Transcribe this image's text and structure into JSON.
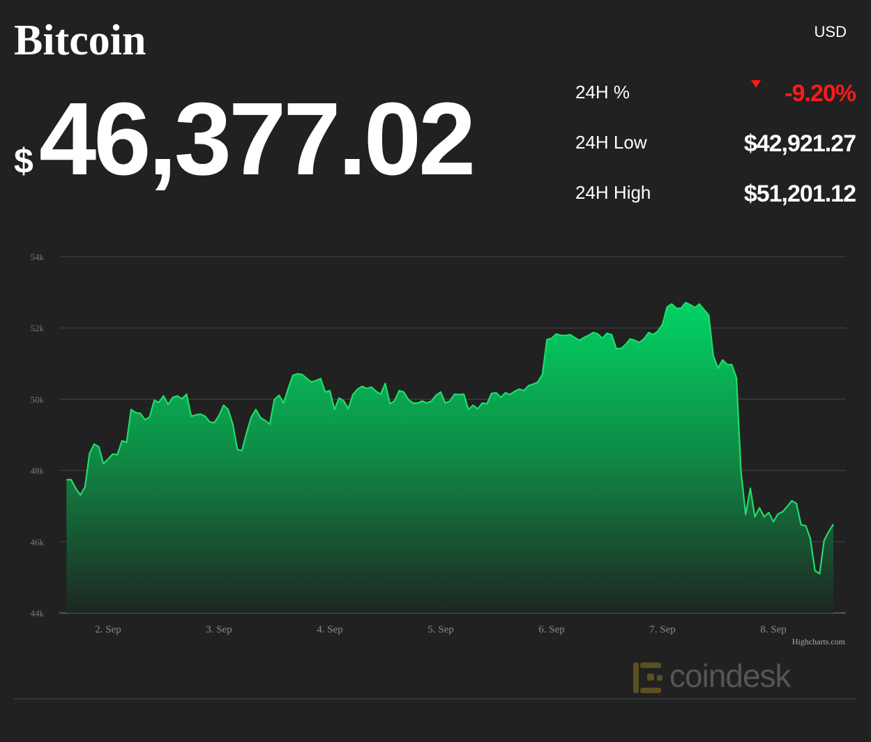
{
  "header": {
    "title": "Bitcoin",
    "currency": "USD",
    "price_symbol": "$",
    "price": "46,377.02"
  },
  "stats": [
    {
      "label": "24H %",
      "value": "-9.20%"
    },
    {
      "label": "24H Low",
      "value": "$42,921.27"
    },
    {
      "label": "24H High",
      "value": "$51,201.12"
    }
  ],
  "chart_data": {
    "type": "area",
    "x": [
      1.625,
      1.667,
      1.708,
      1.75,
      1.792,
      1.833,
      1.875,
      1.917,
      1.958,
      2,
      2.042,
      2.083,
      2.125,
      2.167,
      2.208,
      2.25,
      2.292,
      2.333,
      2.375,
      2.417,
      2.458,
      2.5,
      2.542,
      2.583,
      2.625,
      2.667,
      2.708,
      2.75,
      2.792,
      2.833,
      2.875,
      2.917,
      2.958,
      3,
      3.042,
      3.083,
      3.125,
      3.167,
      3.208,
      3.25,
      3.292,
      3.333,
      3.375,
      3.417,
      3.458,
      3.5,
      3.542,
      3.583,
      3.625,
      3.667,
      3.708,
      3.75,
      3.792,
      3.833,
      3.875,
      3.917,
      3.958,
      4,
      4.042,
      4.083,
      4.125,
      4.167,
      4.208,
      4.25,
      4.292,
      4.333,
      4.375,
      4.417,
      4.458,
      4.5,
      4.542,
      4.583,
      4.625,
      4.667,
      4.708,
      4.75,
      4.792,
      4.833,
      4.875,
      4.917,
      4.958,
      5,
      5.042,
      5.083,
      5.125,
      5.167,
      5.208,
      5.25,
      5.292,
      5.333,
      5.375,
      5.417,
      5.458,
      5.5,
      5.542,
      5.583,
      5.625,
      5.667,
      5.708,
      5.75,
      5.792,
      5.833,
      5.875,
      5.917,
      5.958,
      6,
      6.042,
      6.083,
      6.125,
      6.167,
      6.208,
      6.25,
      6.292,
      6.333,
      6.375,
      6.417,
      6.458,
      6.5,
      6.542,
      6.583,
      6.625,
      6.667,
      6.708,
      6.75,
      6.792,
      6.833,
      6.875,
      6.917,
      6.958,
      7,
      7.042,
      7.083,
      7.125,
      7.167,
      7.208,
      7.25,
      7.292,
      7.333,
      7.375,
      7.417,
      7.458,
      7.5,
      7.542,
      7.583,
      7.625,
      7.667,
      7.708,
      7.75,
      7.792,
      7.833,
      7.875,
      7.917,
      7.958,
      8,
      8.042,
      8.083,
      8.125,
      8.167,
      8.208,
      8.25,
      8.292,
      8.333,
      8.375,
      8.417,
      8.458,
      8.5,
      8.542
    ],
    "values": [
      47740,
      47740,
      47500,
      47310,
      47540,
      48480,
      48740,
      48660,
      48190,
      48320,
      48460,
      48440,
      48830,
      48790,
      49710,
      49620,
      49600,
      49420,
      49500,
      49970,
      49910,
      50090,
      49850,
      50050,
      50090,
      50010,
      50140,
      49520,
      49560,
      49580,
      49520,
      49360,
      49340,
      49540,
      49830,
      49710,
      49300,
      48580,
      48560,
      49070,
      49500,
      49710,
      49480,
      49400,
      49300,
      49990,
      50110,
      49890,
      50300,
      50670,
      50710,
      50690,
      50580,
      50480,
      50520,
      50580,
      50200,
      50240,
      49710,
      50030,
      49950,
      49730,
      50130,
      50280,
      50360,
      50300,
      50340,
      50220,
      50140,
      50440,
      49870,
      49950,
      50240,
      50200,
      49990,
      49890,
      49890,
      49950,
      49890,
      49950,
      50110,
      50200,
      49890,
      49950,
      50140,
      50130,
      50140,
      49710,
      49830,
      49730,
      49890,
      49870,
      50160,
      50180,
      50050,
      50180,
      50130,
      50220,
      50280,
      50240,
      50380,
      50420,
      50480,
      50690,
      51670,
      51710,
      51830,
      51790,
      51790,
      51810,
      51730,
      51650,
      51730,
      51790,
      51870,
      51830,
      51710,
      51850,
      51810,
      51420,
      51420,
      51530,
      51690,
      51650,
      51590,
      51690,
      51870,
      51810,
      51910,
      52100,
      52590,
      52670,
      52550,
      52550,
      52710,
      52650,
      52570,
      52670,
      52510,
      52360,
      51220,
      50870,
      51100,
      50970,
      50970,
      50600,
      47970,
      46760,
      47500,
      46700,
      46950,
      46700,
      46820,
      46560,
      46780,
      46840,
      46990,
      47150,
      47070,
      46470,
      46450,
      46090,
      45190,
      45100,
      46040,
      46290,
      46490
    ],
    "color": "#1fdd6a",
    "xlim": [
      1.56,
      8.654
    ],
    "xticks": [
      {
        "value": 2,
        "label": "2. Sep"
      },
      {
        "value": 3,
        "label": "3. Sep"
      },
      {
        "value": 4,
        "label": "4. Sep"
      },
      {
        "value": 5,
        "label": "5. Sep"
      },
      {
        "value": 6,
        "label": "6. Sep"
      },
      {
        "value": 7,
        "label": "7. Sep"
      },
      {
        "value": 8,
        "label": "8. Sep"
      }
    ],
    "ylim": [
      44000,
      54000
    ],
    "yticks": [
      {
        "value": 44000,
        "label": "44k"
      },
      {
        "value": 46000,
        "label": "46k"
      },
      {
        "value": 48000,
        "label": "48k"
      },
      {
        "value": 50000,
        "label": "50k"
      },
      {
        "value": 52000,
        "label": "52k"
      },
      {
        "value": 54000,
        "label": "54k"
      }
    ],
    "grid": true,
    "credits": "Highcharts.com"
  },
  "footer": {
    "logo": "coindesk"
  }
}
